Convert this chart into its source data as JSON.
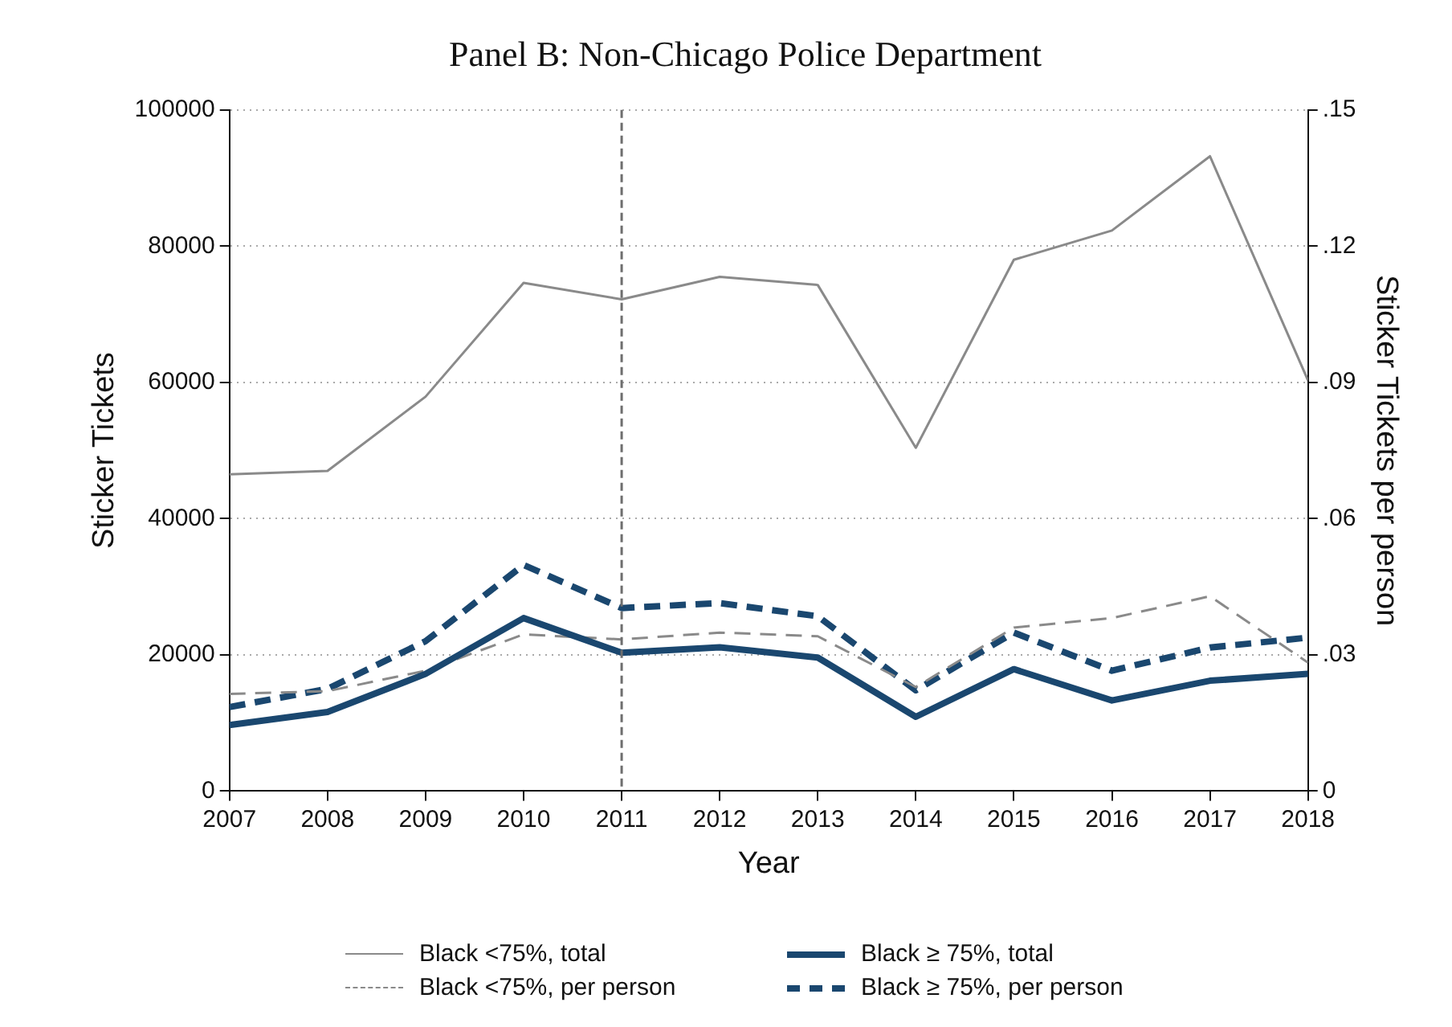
{
  "chart_data": {
    "type": "line",
    "title": "Panel B: Non-Chicago Police Department",
    "xlabel": "Year",
    "ylabel": "Sticker Tickets",
    "y2label": "Sticker Tickets per person",
    "x": [
      2007,
      2008,
      2009,
      2010,
      2011,
      2012,
      2013,
      2014,
      2015,
      2016,
      2017,
      2018
    ],
    "xlim": [
      2007,
      2018
    ],
    "xticks": [
      2007,
      2008,
      2009,
      2010,
      2011,
      2012,
      2013,
      2014,
      2015,
      2016,
      2017,
      2018
    ],
    "ylim": [
      0,
      100000
    ],
    "yticks": [
      0,
      20000,
      40000,
      60000,
      80000,
      100000
    ],
    "y2lim": [
      0,
      0.15
    ],
    "y2ticks": [
      0,
      {
        "value": 0.03,
        "label": ".03"
      },
      {
        "value": 0.06,
        "label": ".06"
      },
      {
        "value": 0.09,
        "label": ".09"
      },
      {
        "value": 0.12,
        "label": ".12"
      },
      {
        "value": 0.15,
        "label": ".15"
      }
    ],
    "series": [
      {
        "name": "Black <75%, total",
        "color": "#8a8a8a",
        "line_style": "solid",
        "values": [
          46500,
          47000,
          57900,
          74600,
          72200,
          75500,
          74300,
          50400,
          78000,
          82300,
          93200,
          60300
        ]
      },
      {
        "name": "Black ≥ 75%, total",
        "color": "#1a476f",
        "line_style": "solid",
        "values": [
          9700,
          11600,
          17200,
          25400,
          20300,
          21100,
          19600,
          10900,
          17900,
          13300,
          16200,
          17200
        ]
      },
      {
        "name": "Black <75%, per person",
        "color": "#8a8a8a",
        "line_style": "dashed",
        "axis": "y2",
        "values": [
          0.0214,
          0.022,
          0.0265,
          0.0345,
          0.0334,
          0.0349,
          0.0341,
          0.0229,
          0.036,
          0.0381,
          0.0429,
          0.0283
        ]
      },
      {
        "name": "Black ≥ 75%, per person",
        "color": "#1a476f",
        "line_style": "dashed",
        "axis": "y2",
        "values": [
          0.0185,
          0.0225,
          0.033,
          0.0498,
          0.0403,
          0.0414,
          0.0385,
          0.0222,
          0.0349,
          0.0265,
          0.0316,
          0.0338
        ]
      }
    ],
    "ref_lines": [
      {
        "axis": "x",
        "value": 2011,
        "color": "#6e6e6e",
        "line_style": "dashed"
      }
    ],
    "grid": "y",
    "legend": "bottom",
    "marker": "none"
  }
}
